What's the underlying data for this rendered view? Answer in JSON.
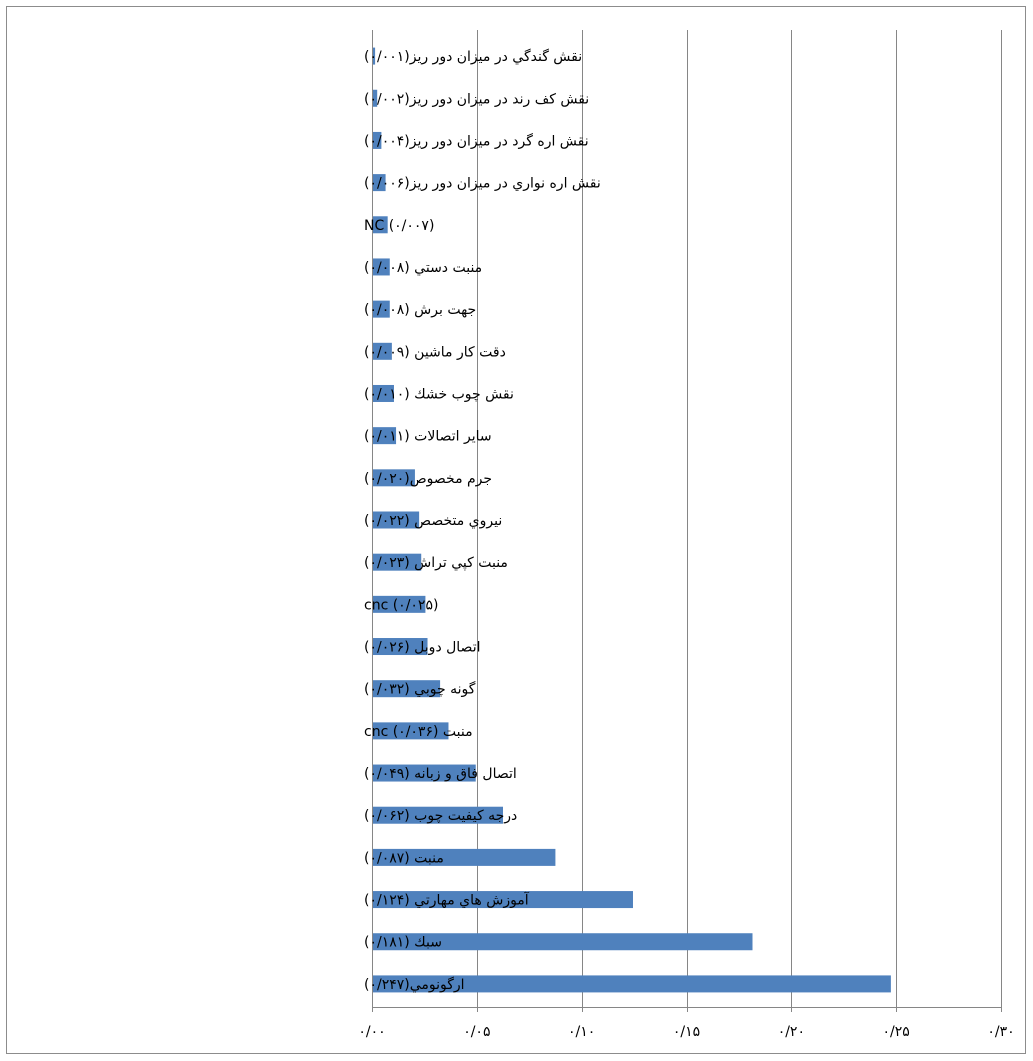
{
  "chart_data": {
    "type": "bar",
    "orientation": "horizontal",
    "title": "",
    "xlabel": "",
    "ylabel": "",
    "categories": [
      "نقش گندگي در ميزان دور ريز(۰/۰۰۱)",
      "نقش كف رند در ميزان دور ريز(۰/۰۰۲)",
      "نقش اره گرد در ميزان دور ريز(۰/۰۰۴)",
      "نقش اره نواري در ميزان دور ريز(۰/۰۰۶)",
      "NC (۰/۰۰۷)",
      "منبت دستي (۰/۰۰۸)",
      "جهت برش (۰/۰۰۸)",
      "دقت كار ماشين (۰/۰۰۹)",
      "نقش چوب خشك (۰/۰۱۰)",
      "ساير اتصالات (۰/۰۱۱)",
      "جرم مخصوص(۰/۰۲۰)",
      "نيروي متخصص (۰/۰۲۲)",
      "منبت كپي تراش (۰/۰۲۳)",
      "cnc (۰/۰۲۵)",
      "اتصال دوبل (۰/۰۲۶)",
      "گونه چوبي (۰/۰۳۲)",
      "منبت cnc (۰/۰۳۶)",
      "اتصال فاق و زبانه (۰/۰۴۹)",
      "درجه كيفيت چوب (۰/۰۶۲)",
      "منبت (۰/۰۸۷)",
      "آموزش هاي مهارتي (۰/۱۲۴)",
      "سبك (۰/۱۸۱)",
      "ارگونومي(۰/۲۴۷)"
    ],
    "values": [
      0.001,
      0.002,
      0.004,
      0.006,
      0.007,
      0.008,
      0.008,
      0.009,
      0.01,
      0.011,
      0.02,
      0.022,
      0.023,
      0.025,
      0.026,
      0.032,
      0.036,
      0.049,
      0.062,
      0.087,
      0.124,
      0.181,
      0.247
    ],
    "xlim": [
      0,
      0.3
    ],
    "xticks": [
      0,
      0.05,
      0.1,
      0.15,
      0.2,
      0.25,
      0.3
    ],
    "xtick_labels": [
      "۰/۰۰",
      "۰/۰۵",
      "۰/۱۰",
      "۰/۱۵",
      "۰/۲۰",
      "۰/۲۵",
      "۰/۳۰"
    ],
    "grid": "vertical",
    "legend": "none",
    "bar_color": "#4f81bd",
    "grid_color": "#868686"
  }
}
